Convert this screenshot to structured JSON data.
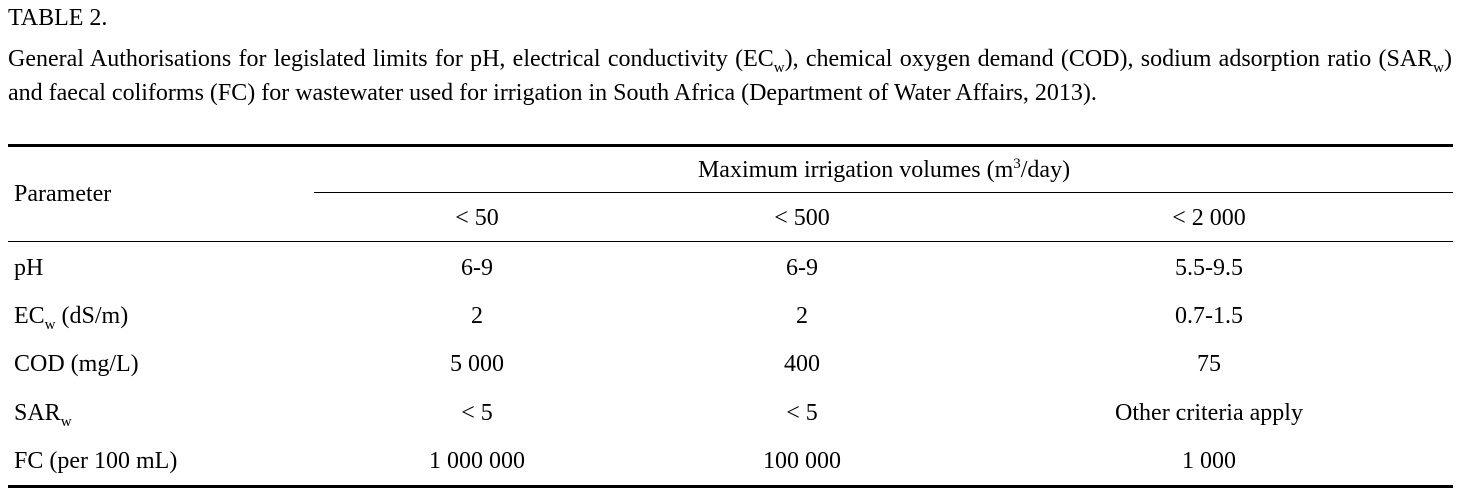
{
  "table_label": "TABLE 2.",
  "caption": {
    "part1": "General Authorisations for legislated limits for pH, electrical conductivity (EC",
    "sub1": "w",
    "part2": "), chemical oxygen demand (COD), sodium adsorption ratio (SAR",
    "sub2": "w",
    "part3": ") and faecal coliforms (FC) for wastewater used for irrigation in South Africa (Department of Water Affairs, 2013)."
  },
  "header": {
    "parameter": "Parameter",
    "group_text_before": "Maximum irrigation volumes (m",
    "group_sup": "3",
    "group_text_after": "/day)",
    "columns": [
      "< 50",
      "< 500",
      "< 2 000"
    ]
  },
  "rows": [
    {
      "param": "pH",
      "param_sub": "",
      "param_suffix": "",
      "values": [
        "6-9",
        "6-9",
        "5.5-9.5"
      ]
    },
    {
      "param": "EC",
      "param_sub": "w",
      "param_suffix": " (dS/m)",
      "values": [
        "2",
        "2",
        "0.7-1.5"
      ]
    },
    {
      "param": "COD (mg/L)",
      "param_sub": "",
      "param_suffix": "",
      "values": [
        "5 000",
        "400",
        "75"
      ]
    },
    {
      "param": "SAR",
      "param_sub": "w",
      "param_suffix": "",
      "values": [
        "< 5",
        "< 5",
        "Other criteria apply"
      ]
    },
    {
      "param": "FC (per 100 mL)",
      "param_sub": "",
      "param_suffix": "",
      "values": [
        "1 000 000",
        "100 000",
        "1 000"
      ]
    }
  ]
}
